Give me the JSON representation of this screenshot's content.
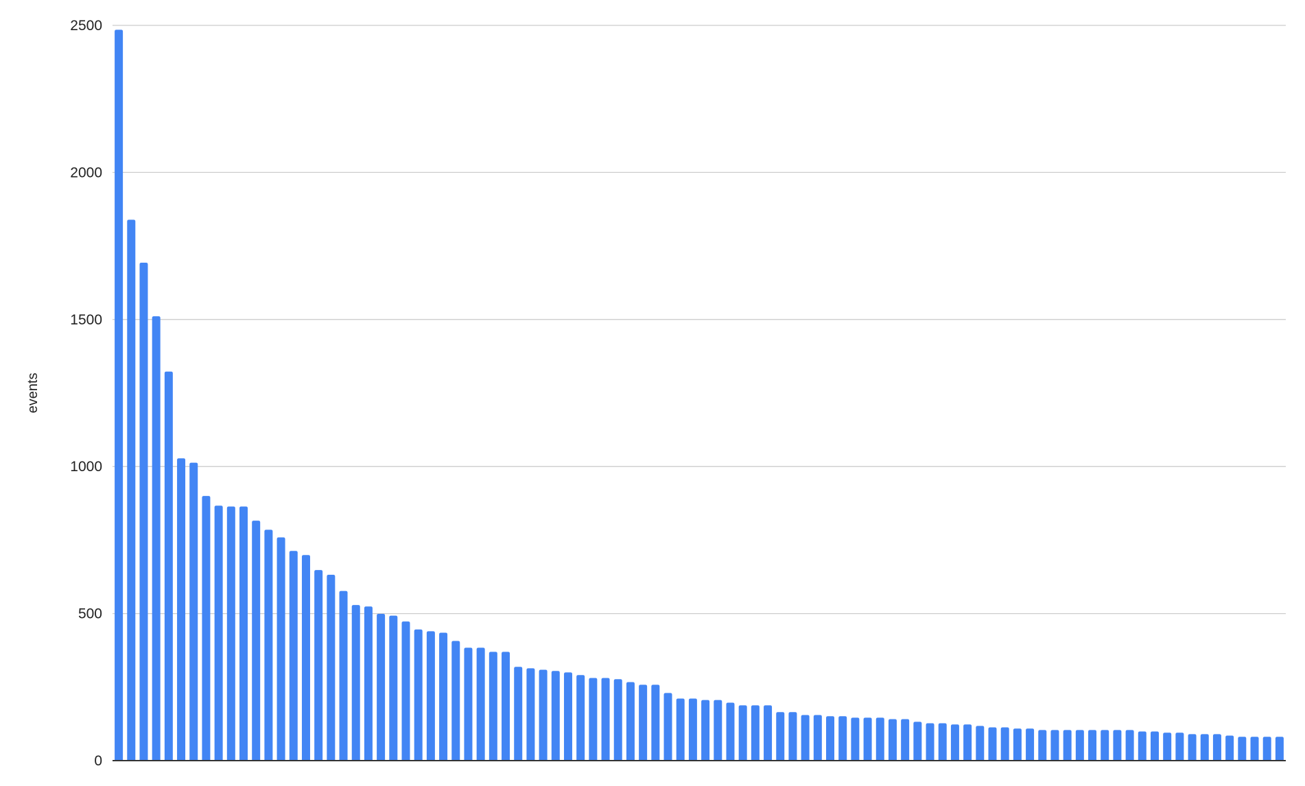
{
  "chart_data": {
    "type": "bar",
    "title": "",
    "xlabel": "",
    "ylabel": "events",
    "ylim": [
      0,
      2500
    ],
    "yticks": [
      "0",
      "500",
      "1000",
      "1500",
      "2000",
      "2500"
    ],
    "grid": true,
    "legend": "none",
    "bar_color": "#4285f4",
    "grid_color": "#cccccc",
    "axis_color": "#333333",
    "values": [
      2485,
      1839,
      1693,
      1511,
      1323,
      1028,
      1013,
      900,
      867,
      864,
      864,
      816,
      785,
      759,
      713,
      699,
      648,
      632,
      577,
      529,
      524,
      499,
      493,
      473,
      446,
      440,
      435,
      407,
      384,
      384,
      370,
      370,
      319,
      314,
      309,
      305,
      300,
      291,
      281,
      281,
      277,
      267,
      258,
      258,
      230,
      211,
      211,
      206,
      206,
      197,
      188,
      188,
      188,
      165,
      165,
      155,
      155,
      151,
      151,
      146,
      146,
      146,
      141,
      141,
      132,
      127,
      127,
      123,
      123,
      118,
      113,
      113,
      109,
      109,
      104,
      104,
      104,
      104,
      104,
      104,
      104,
      104,
      99,
      99,
      95,
      95,
      90,
      90,
      90,
      85,
      81,
      81,
      81,
      81
    ]
  }
}
